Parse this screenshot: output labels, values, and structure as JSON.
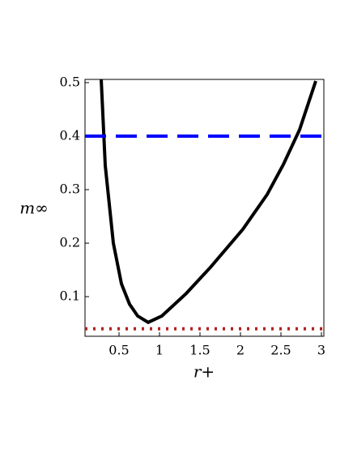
{
  "chart_data": {
    "type": "line",
    "x_label": "r+",
    "y_label": "m∞",
    "xlim": [
      0.08,
      3.03
    ],
    "ylim": [
      0.026,
      0.506
    ],
    "xticks": [
      0.5,
      1,
      1.5,
      2,
      2.5,
      3
    ],
    "yticks": [
      0.1,
      0.2,
      0.3,
      0.4,
      0.5
    ],
    "grid": false,
    "series": [
      {
        "color": "#000000",
        "style": "solid",
        "x": [
          0.28,
          0.33,
          0.43,
          0.53,
          0.63,
          0.73,
          0.86,
          1.03,
          1.33,
          1.63,
          2.03,
          2.33,
          2.53,
          2.73,
          2.93
        ],
        "values": [
          0.506,
          0.345,
          0.2,
          0.124,
          0.086,
          0.064,
          0.052,
          0.064,
          0.106,
          0.155,
          0.226,
          0.291,
          0.347,
          0.412,
          0.503
        ]
      },
      {
        "color": "#0000ff",
        "style": "dashed",
        "x": [
          0.08,
          3.03
        ],
        "values": [
          0.4,
          0.4
        ]
      },
      {
        "color": "#b22222",
        "style": "dotted",
        "x": [
          0.08,
          3.03
        ],
        "values": [
          0.04,
          0.04
        ]
      }
    ]
  }
}
